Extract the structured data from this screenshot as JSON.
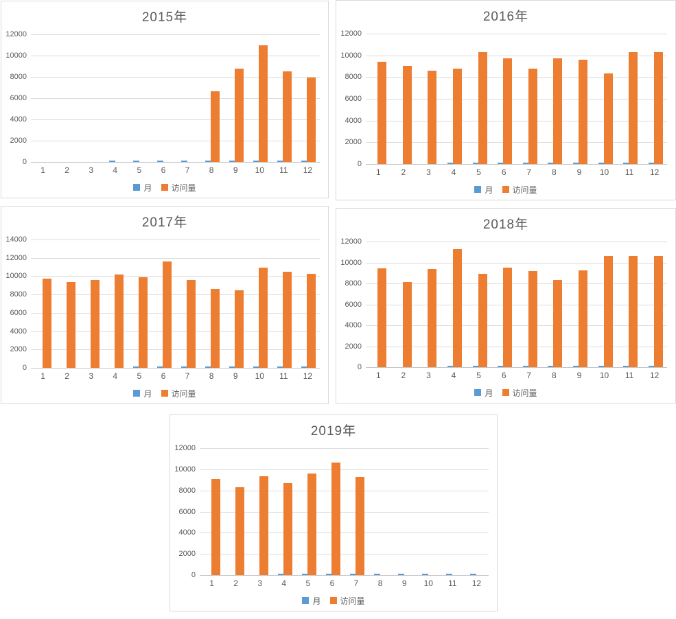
{
  "colors": {
    "visits_bar": "#ED7D31",
    "month_bar": "#5B9BD5",
    "gridline": "#DCDCDC",
    "axis_line": "#C6C6C6",
    "text": "#595959",
    "chart_border": "#D9D9D9",
    "background": "#FFFFFF"
  },
  "legend_labels": [
    "月",
    "访问量"
  ],
  "chart_data": [
    {
      "type": "bar",
      "title": "2015年",
      "categories": [
        1,
        2,
        3,
        4,
        5,
        6,
        7,
        8,
        9,
        10,
        11,
        12
      ],
      "series": [
        {
          "name": "月",
          "color": "#5B9BD5",
          "values": [
            1,
            2,
            3,
            4,
            5,
            6,
            7,
            8,
            9,
            10,
            11,
            12
          ]
        },
        {
          "name": "访问量",
          "color": "#ED7D31",
          "values": [
            0,
            0,
            0,
            0,
            0,
            0,
            0,
            6650,
            8800,
            10950,
            8500,
            7950
          ]
        }
      ],
      "ylim": [
        0,
        12000
      ],
      "ytick_step": 2000,
      "grid": true,
      "legend_position": "bottom",
      "month_dash_visible_from": 4
    },
    {
      "type": "bar",
      "title": "2016年",
      "categories": [
        1,
        2,
        3,
        4,
        5,
        6,
        7,
        8,
        9,
        10,
        11,
        12
      ],
      "series": [
        {
          "name": "月",
          "color": "#5B9BD5",
          "values": [
            1,
            2,
            3,
            4,
            5,
            6,
            7,
            8,
            9,
            10,
            11,
            12
          ]
        },
        {
          "name": "访问量",
          "color": "#ED7D31",
          "values": [
            9400,
            9050,
            8600,
            8800,
            10300,
            9750,
            8800,
            9700,
            9600,
            8350,
            10300,
            10300
          ]
        }
      ],
      "ylim": [
        0,
        12000
      ],
      "ytick_step": 2000,
      "grid": true,
      "legend_position": "bottom",
      "month_dash_visible_from": 4
    },
    {
      "type": "bar",
      "title": "2017年",
      "categories": [
        1,
        2,
        3,
        4,
        5,
        6,
        7,
        8,
        9,
        10,
        11,
        12
      ],
      "series": [
        {
          "name": "月",
          "color": "#5B9BD5",
          "values": [
            1,
            2,
            3,
            4,
            5,
            6,
            7,
            8,
            9,
            10,
            11,
            12
          ]
        },
        {
          "name": "访问量",
          "color": "#ED7D31",
          "values": [
            9750,
            9350,
            9550,
            10150,
            9850,
            11600,
            9600,
            8600,
            8450,
            10950,
            10500,
            10250
          ]
        }
      ],
      "ylim": [
        0,
        14000
      ],
      "ytick_step": 2000,
      "grid": true,
      "legend_position": "bottom",
      "month_dash_visible_from": 5
    },
    {
      "type": "bar",
      "title": "2018年",
      "categories": [
        1,
        2,
        3,
        4,
        5,
        6,
        7,
        8,
        9,
        10,
        11,
        12
      ],
      "series": [
        {
          "name": "月",
          "color": "#5B9BD5",
          "values": [
            1,
            2,
            3,
            4,
            5,
            6,
            7,
            8,
            9,
            10,
            11,
            12
          ]
        },
        {
          "name": "访问量",
          "color": "#ED7D31",
          "values": [
            9450,
            8150,
            9400,
            11250,
            8900,
            9500,
            9150,
            8350,
            9250,
            10650,
            10600,
            10650
          ]
        }
      ],
      "ylim": [
        0,
        12000
      ],
      "ytick_step": 2000,
      "grid": true,
      "legend_position": "bottom",
      "month_dash_visible_from": 4
    },
    {
      "type": "bar",
      "title": "2019年",
      "categories": [
        1,
        2,
        3,
        4,
        5,
        6,
        7,
        8,
        9,
        10,
        11,
        12
      ],
      "series": [
        {
          "name": "月",
          "color": "#5B9BD5",
          "values": [
            1,
            2,
            3,
            4,
            5,
            6,
            7,
            8,
            9,
            10,
            11,
            12
          ]
        },
        {
          "name": "访问量",
          "color": "#ED7D31",
          "values": [
            9050,
            8300,
            9350,
            8700,
            9600,
            10650,
            9250,
            0,
            0,
            0,
            0,
            0
          ]
        }
      ],
      "ylim": [
        0,
        12000
      ],
      "ytick_step": 2000,
      "grid": true,
      "legend_position": "bottom",
      "month_dash_visible_from": 4
    }
  ]
}
